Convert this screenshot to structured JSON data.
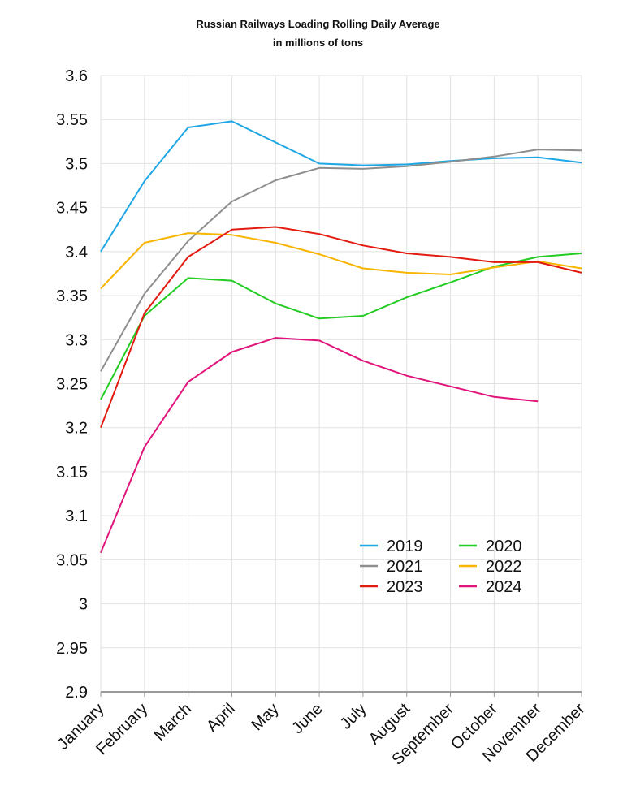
{
  "chart_data": {
    "type": "line",
    "title": "Russian Railways Loading Rolling Daily Average",
    "subtitle": "in millions of tons",
    "xlabel": "",
    "ylabel": "",
    "ylim": [
      2.9,
      3.6
    ],
    "yticks": [
      "3.6",
      "3.55",
      "3.5",
      "3.45",
      "3.4",
      "3.35",
      "3.3",
      "3.25",
      "3.2",
      "3.15",
      "3.1",
      "3.05",
      "3",
      "2.95",
      "2.9"
    ],
    "grid": true,
    "legend": "center-right",
    "categories": [
      "January",
      "February",
      "March",
      "April",
      "May",
      "June",
      "July",
      "August",
      "September",
      "October",
      "November",
      "December"
    ],
    "series": [
      {
        "name": "2019",
        "color": "#1ea7e4",
        "values": [
          3.4,
          3.48,
          3.541,
          3.548,
          3.524,
          3.5,
          3.498,
          3.499,
          3.503,
          3.506,
          3.507,
          3.501
        ]
      },
      {
        "name": "2020",
        "color": "#22cc22",
        "values": [
          3.232,
          3.327,
          3.37,
          3.367,
          3.341,
          3.324,
          3.327,
          3.348,
          3.365,
          3.383,
          3.394,
          3.398
        ]
      },
      {
        "name": "2021",
        "color": "#8e8e8e",
        "values": [
          3.264,
          3.352,
          3.412,
          3.457,
          3.481,
          3.495,
          3.494,
          3.497,
          3.502,
          3.508,
          3.516,
          3.515
        ]
      },
      {
        "name": "2022",
        "color": "#f7b500",
        "values": [
          3.358,
          3.41,
          3.421,
          3.419,
          3.41,
          3.397,
          3.381,
          3.376,
          3.374,
          3.382,
          3.389,
          3.381
        ]
      },
      {
        "name": "2023",
        "color": "#e31a10",
        "values": [
          3.2,
          3.33,
          3.394,
          3.425,
          3.428,
          3.42,
          3.407,
          3.398,
          3.394,
          3.388,
          3.388,
          3.376
        ]
      },
      {
        "name": "2024",
        "color": "#e0147a",
        "values": [
          3.058,
          3.178,
          3.252,
          3.286,
          3.302,
          3.299,
          3.276,
          3.259,
          3.247,
          3.235,
          3.23,
          null
        ]
      }
    ]
  }
}
